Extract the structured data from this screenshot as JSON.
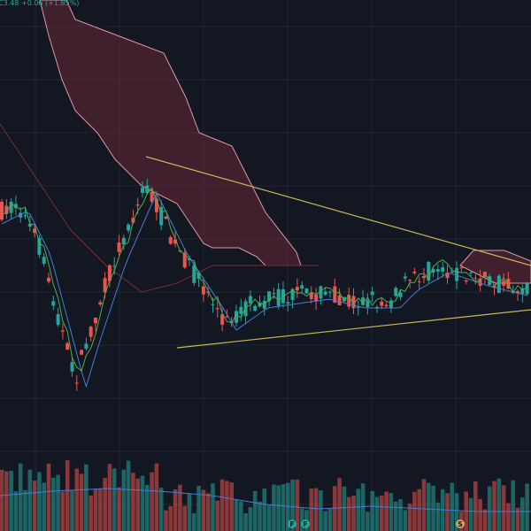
{
  "legend": {
    "close": "C3.48",
    "change": "+0.06 (+1.85%)"
  },
  "events": [
    {
      "label": "F"
    },
    {
      "label": "F"
    },
    {
      "label": "S"
    }
  ]
}
